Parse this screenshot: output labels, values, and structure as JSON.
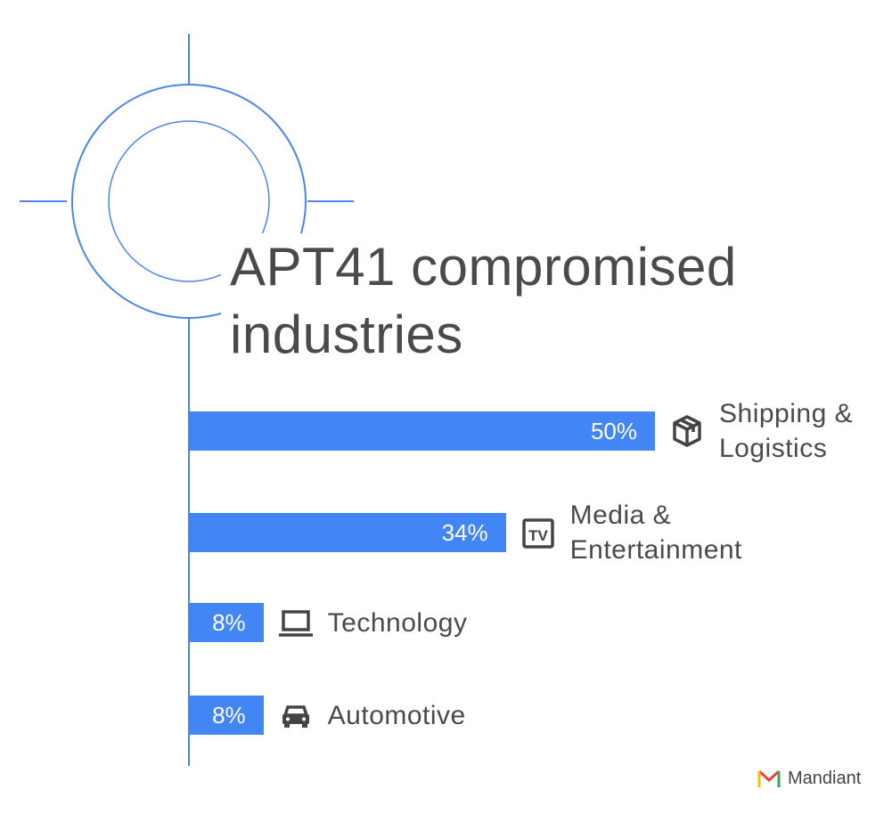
{
  "chart_data": {
    "type": "bar",
    "orientation": "horizontal",
    "title": "APT41 compromised industries",
    "categories": [
      "Shipping & Logistics",
      "Media & Entertainment",
      "Technology",
      "Automotive"
    ],
    "values": [
      50,
      34,
      8,
      8
    ],
    "value_labels": [
      "50%",
      "34%",
      "8%",
      "8%"
    ],
    "color": "#4285f4"
  },
  "footer": {
    "logo": "Mandiant"
  }
}
